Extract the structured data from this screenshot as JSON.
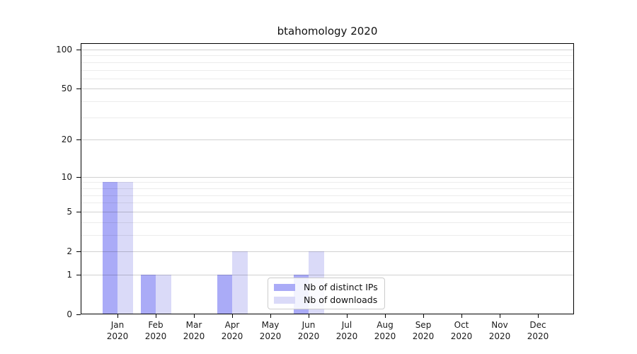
{
  "title": "btahomology 2020",
  "legend": {
    "entries": [
      {
        "label": "Nb of distinct IPs"
      },
      {
        "label": "Nb of downloads"
      }
    ]
  },
  "chart_data": {
    "type": "bar",
    "title": "btahomology 2020",
    "categories": [
      "Jan",
      "Feb",
      "Mar",
      "Apr",
      "May",
      "Jun",
      "Jul",
      "Aug",
      "Sep",
      "Oct",
      "Nov",
      "Dec"
    ],
    "category_year": "2020",
    "series": [
      {
        "name": "Nb of distinct IPs",
        "color": "#aaabf7",
        "values": [
          9,
          1,
          0,
          1,
          0,
          1,
          0,
          0,
          0,
          0,
          0,
          0
        ]
      },
      {
        "name": "Nb of downloads",
        "color": "#dadaf8",
        "values": [
          9,
          1,
          0,
          2,
          0,
          2,
          0,
          0,
          0,
          0,
          0,
          0
        ]
      }
    ],
    "xlabel": "",
    "ylabel": "",
    "yscale": "log10(1+y)",
    "ylim": [
      0,
      112
    ],
    "y_major_ticks": [
      0,
      1,
      2,
      5,
      10,
      20,
      50,
      100
    ],
    "y_minor_ticks": [
      3,
      4,
      6,
      7,
      8,
      9,
      30,
      40,
      60,
      70,
      80,
      90
    ],
    "grid": "major and minor horizontal gridlines, drawn over bars",
    "legend_position": "lower center, inside plot",
    "colors": {
      "axis": "#000000",
      "grid_major": "#cfcfcf",
      "grid_minor": "#ececec",
      "background": "#ffffff",
      "text": "#1a1a1a"
    }
  }
}
